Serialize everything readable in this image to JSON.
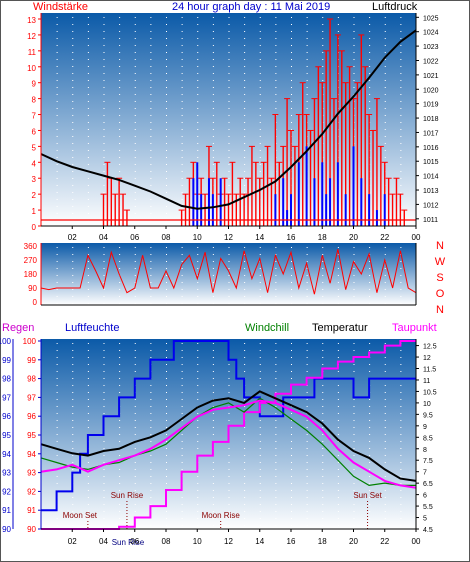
{
  "header": {
    "left_label": "Windstärke",
    "title": "24 hour graph day : 11 Mai 2019",
    "right_label": "Luftdruck"
  },
  "colors": {
    "wind": "#ff0000",
    "gust_highlight": "#0000ff",
    "pressure": "#000000",
    "humidity": "#0000ee",
    "dewpoint": "#ff00ff",
    "windchill": "#008000",
    "temperature": "#000000",
    "rain": "#ff00ff",
    "axis_red": "#ff0000",
    "axis_blue": "#0000cc",
    "panel_top": "#0055aa",
    "panel_bottom": "#ffffff"
  },
  "chart_data": [
    {
      "type": "bar",
      "panel": "wind_pressure",
      "left_axis_label": "Windstärke",
      "right_axis_label": "Luftdruck",
      "x_ticks": [
        "02",
        "04",
        "06",
        "08",
        "10",
        "12",
        "14",
        "16",
        "18",
        "20",
        "22",
        "00"
      ],
      "left_ticks": [
        "0",
        "1",
        "2",
        "3",
        "4",
        "5",
        "6",
        "7",
        "8",
        "9",
        "10",
        "11",
        "12",
        "13"
      ],
      "right_ticks": [
        "1011",
        "1012",
        "1013",
        "1014",
        "1015",
        "1016",
        "1017",
        "1018",
        "1019",
        "1020",
        "1021",
        "1022",
        "1023",
        "1024",
        "1025"
      ],
      "ylim_left": [
        0,
        13
      ],
      "ylim_right": [
        1010.5,
        1025.3
      ],
      "wind_hours": [
        4.0,
        4.25,
        4.5,
        4.75,
        5.0,
        5.25,
        5.5,
        9.0,
        9.25,
        9.5,
        9.75,
        10.0,
        10.25,
        10.5,
        10.75,
        11.0,
        11.25,
        11.5,
        11.75,
        12.0,
        12.25,
        12.5,
        12.75,
        13.0,
        13.25,
        13.5,
        13.75,
        14.0,
        14.25,
        14.5,
        14.75,
        15.0,
        15.25,
        15.5,
        15.75,
        16.0,
        16.25,
        16.5,
        16.75,
        17.0,
        17.25,
        17.5,
        17.75,
        18.0,
        18.25,
        18.5,
        18.75,
        19.0,
        19.25,
        19.5,
        19.75,
        20.0,
        20.25,
        20.5,
        20.75,
        21.0,
        21.25,
        21.5,
        21.75,
        22.0,
        22.25,
        22.5,
        22.75,
        23.0,
        23.25
      ],
      "wind_values": [
        2,
        4,
        3,
        2,
        3,
        2,
        1,
        1,
        2,
        3,
        4,
        2,
        3,
        2,
        5,
        3,
        4,
        2,
        3,
        2,
        4,
        2,
        3,
        2,
        3,
        5,
        4,
        3,
        4,
        5,
        3,
        7,
        4,
        5,
        8,
        6,
        5,
        7,
        9,
        7,
        6,
        8,
        10,
        9,
        11,
        13,
        8,
        12,
        11,
        9,
        10,
        8,
        9,
        12,
        10,
        7,
        6,
        8,
        5,
        4,
        3,
        2,
        3,
        2,
        1
      ],
      "gust_hours": [
        9.75,
        10.0,
        10.25,
        10.75,
        11.0,
        11.5,
        15.0,
        15.5,
        15.75,
        16.0,
        16.5,
        17.0,
        17.5,
        18.0,
        18.25,
        18.5,
        19.0,
        19.5,
        20.0,
        20.5,
        21.0,
        21.5,
        22.0
      ],
      "gust_values": [
        3,
        4,
        2,
        3,
        2,
        3,
        2,
        3,
        1,
        2,
        4,
        5,
        3,
        4,
        2,
        3,
        4,
        2,
        5,
        3,
        2,
        1,
        2
      ],
      "pressure_hours": [
        0,
        1,
        2,
        3,
        4,
        5,
        6,
        7,
        8,
        9,
        10,
        11,
        12,
        13,
        14,
        15,
        16,
        17,
        18,
        19,
        20,
        21,
        22,
        23,
        24
      ],
      "pressure_values": [
        1015.5,
        1015.0,
        1014.6,
        1014.3,
        1014.0,
        1013.7,
        1013.3,
        1012.9,
        1012.4,
        1011.9,
        1011.7,
        1011.8,
        1012.0,
        1012.5,
        1013.0,
        1013.6,
        1014.6,
        1015.7,
        1016.9,
        1018.3,
        1019.5,
        1020.8,
        1022.2,
        1023.3,
        1024.1
      ]
    },
    {
      "type": "line",
      "panel": "wind_direction",
      "right_axis_label": "N W S O N",
      "y_ticks": [
        "0",
        "90",
        "180",
        "270",
        "360"
      ],
      "right_ticks": [
        "N",
        "W",
        "S",
        "O",
        "N"
      ],
      "ylim": [
        0,
        360
      ],
      "hours": [
        0,
        0.5,
        1,
        1.5,
        2,
        2.5,
        3,
        3.5,
        4,
        4.5,
        5,
        5.5,
        6,
        6.5,
        7,
        7.5,
        8,
        8.5,
        9,
        9.5,
        10,
        10.5,
        11,
        11.5,
        12,
        12.5,
        13,
        13.5,
        14,
        14.5,
        15,
        15.5,
        16,
        16.5,
        17,
        17.5,
        18,
        18.5,
        19,
        19.5,
        20,
        20.5,
        21,
        21.5,
        22,
        22.5,
        23,
        23.5,
        24
      ],
      "values": [
        90,
        80,
        90,
        90,
        90,
        90,
        300,
        200,
        90,
        320,
        180,
        60,
        90,
        300,
        90,
        90,
        200,
        90,
        240,
        300,
        150,
        320,
        60,
        280,
        200,
        90,
        330,
        150,
        280,
        60,
        300,
        180,
        320,
        90,
        250,
        50,
        300,
        120,
        340,
        80,
        260,
        180,
        310,
        60,
        270,
        90,
        330,
        90,
        60
      ]
    },
    {
      "type": "line",
      "panel": "temperature_humidity",
      "left_axis_label": "Regen",
      "humidity_label": "Luftfeuchte",
      "windchill_label": "Windchill",
      "temperature_label": "Temperatur",
      "dewpoint_label": "Taupunkt",
      "x_ticks": [
        "02",
        "04",
        "06",
        "08",
        "10",
        "12",
        "14",
        "16",
        "18",
        "20",
        "22",
        "00"
      ],
      "left_ticks": [
        "90",
        "91",
        "92",
        "93",
        "94",
        "95",
        "96",
        "97",
        "98",
        "99",
        "100"
      ],
      "right_ticks": [
        "4.5",
        "5",
        "5.5",
        "6",
        "6.5",
        "7",
        "7.5",
        "8",
        "8.5",
        "9",
        "9.5",
        "10",
        "10.5",
        "11",
        "11.5",
        "12",
        "12.5"
      ],
      "ylim_humidity": [
        90,
        100
      ],
      "ylim_temp": [
        4.5,
        12.7
      ],
      "annotations": [
        {
          "label": "Moon Set",
          "hour": 3.0
        },
        {
          "label": "Sun Rise",
          "hour": 5.5
        },
        {
          "label": "Sun Rise",
          "hour": 5.5
        },
        {
          "label": "Moon Rise",
          "hour": 11.5
        },
        {
          "label": "Sun Set",
          "hour": 20.9
        }
      ],
      "humidity_hours": [
        0,
        0.5,
        1,
        1.5,
        2,
        2.5,
        3,
        3.5,
        4,
        4.5,
        5,
        5.5,
        6,
        6.5,
        7,
        7.5,
        8,
        8.5,
        9,
        9.5,
        10,
        10.5,
        11,
        11.5,
        12,
        12.5,
        13,
        13.5,
        14,
        14.5,
        15,
        15.5,
        16,
        16.5,
        17,
        17.5,
        18,
        18.5,
        19,
        19.5,
        20,
        20.5,
        21,
        21.5,
        22,
        22.5,
        23,
        23.5,
        24
      ],
      "humidity_values": [
        91,
        91,
        92,
        92,
        93,
        94,
        95,
        95,
        96,
        96,
        97,
        97,
        98,
        98,
        99,
        99,
        99,
        100,
        100,
        100,
        100,
        100,
        100,
        100,
        99,
        98,
        97,
        97,
        96,
        96,
        96,
        97,
        97,
        97,
        97,
        98,
        98,
        98,
        98,
        98,
        97,
        97,
        98,
        98,
        98,
        98,
        98,
        98,
        98
      ],
      "temp_hours": [
        0,
        1,
        2,
        3,
        4,
        5,
        6,
        7,
        8,
        9,
        10,
        11,
        12,
        13,
        14,
        15,
        16,
        17,
        18,
        19,
        20,
        21,
        22,
        23,
        24
      ],
      "temp_values": [
        8.2,
        8.0,
        7.8,
        7.7,
        7.9,
        8.0,
        8.3,
        8.5,
        8.8,
        9.3,
        9.8,
        10.1,
        10.2,
        10.0,
        10.5,
        10.2,
        9.9,
        9.6,
        9.1,
        8.4,
        7.9,
        7.6,
        7.1,
        6.7,
        6.6
      ],
      "windchill_values": [
        7.6,
        7.4,
        7.2,
        7.1,
        7.3,
        7.4,
        7.7,
        7.9,
        8.2,
        8.8,
        9.4,
        9.8,
        10.0,
        9.6,
        10.2,
        9.8,
        9.3,
        8.8,
        8.2,
        7.5,
        6.8,
        6.4,
        6.5,
        6.4,
        6.4
      ],
      "dewpoint_values": [
        7.0,
        7.1,
        7.3,
        7.0,
        7.3,
        7.5,
        7.7,
        8.0,
        8.4,
        8.9,
        9.4,
        9.7,
        9.8,
        9.9,
        10.1,
        10.0,
        9.7,
        9.4,
        8.8,
        8.0,
        7.4,
        7.0,
        6.6,
        6.4,
        6.3
      ],
      "rain_hours": [
        0,
        1,
        2,
        3,
        4,
        5,
        6,
        7,
        8,
        9,
        10,
        11,
        12,
        13,
        14,
        15,
        16,
        17,
        18,
        19,
        20,
        21,
        22,
        23,
        24
      ],
      "rain_values": [
        4.5,
        4.5,
        4.5,
        4.5,
        4.5,
        4.6,
        5.0,
        5.5,
        6.2,
        7.0,
        7.7,
        8.3,
        9.0,
        9.6,
        10.0,
        10.4,
        10.8,
        11.1,
        11.5,
        11.8,
        12.0,
        12.2,
        12.5,
        12.7,
        12.7
      ]
    }
  ]
}
